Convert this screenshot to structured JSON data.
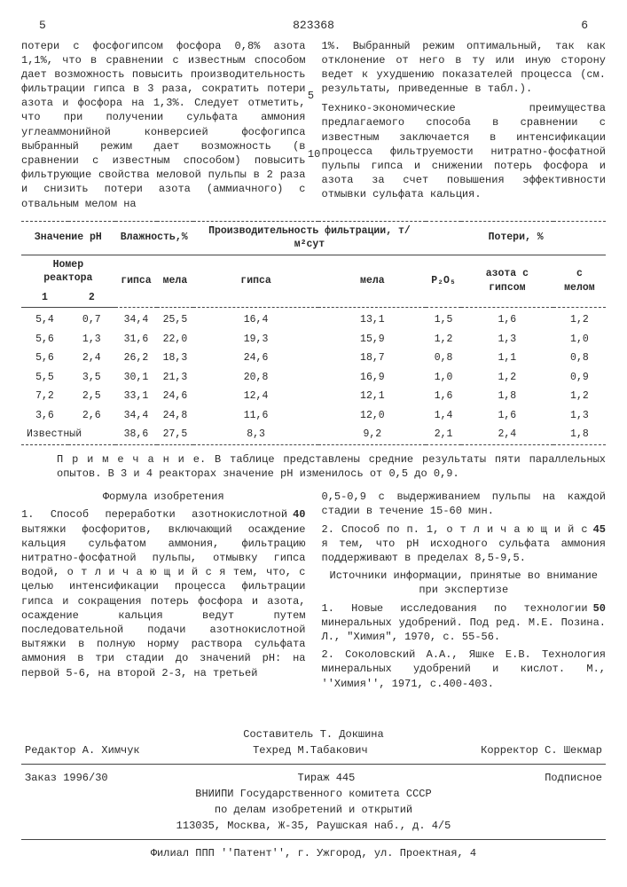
{
  "header": {
    "left_col_num": "5",
    "doc_number": "823368",
    "right_col_num": "6"
  },
  "body": {
    "left_para": "потери с фосфогипсом фосфора 0,8% азота 1,1%, что в сравнении с известным способом дает возможность повысить производительность фильтрации гипса в 3 раза, сократить потери азота и фосфора на 1,3%. Следует отметить, что при получении сульфата аммония углеаммонийной конверсией фосфогипса выбранный режим дает возможность (в сравнении с известным способом) повысить фильтрующие свойства меловой пульпы в 2 раза и снизить потери азота (аммиачного) с отвальным мелом на",
    "right_para1": "1%. Выбранный режим оптимальный, так как отклонение от него в ту или иную сторону ведет к ухудшению показателей процесса (см. результаты, приведенные в табл.).",
    "right_para2": "Технико-экономические преимущества предлагаемого способа в сравнении с известным заключается в интенсификации процесса фильтруемости нитратно-фосфатной пульпы гипса и снижении потерь фосфора и азота за счет повышения эффективности отмывки сульфата кальция.",
    "side5": "5",
    "side10": "10"
  },
  "table": {
    "head": {
      "ph": "Значение pH",
      "reactor": "Номер реактора",
      "r1": "1",
      "r2": "2",
      "moist": "Влажность,%",
      "m_g": "гипса",
      "m_m": "мела",
      "prod": "Производительность фильтрации, т/м²сут",
      "p_g": "гипса",
      "p_m": "мела",
      "loss": "Потери, %",
      "p2o5": "P₂O₅",
      "n_g": "азота с гипсом",
      "n_m": "с мелом"
    },
    "rows": [
      {
        "r1": "5,4",
        "r2": "0,7",
        "mg": "34,4",
        "mm": "25,5",
        "pg": "16,4",
        "pm": "13,1",
        "p": "1,5",
        "ng": "1,6",
        "nm": "1,2"
      },
      {
        "r1": "5,6",
        "r2": "1,3",
        "mg": "31,6",
        "mm": "22,0",
        "pg": "19,3",
        "pm": "15,9",
        "p": "1,2",
        "ng": "1,3",
        "nm": "1,0"
      },
      {
        "r1": "5,6",
        "r2": "2,4",
        "mg": "26,2",
        "mm": "18,3",
        "pg": "24,6",
        "pm": "18,7",
        "p": "0,8",
        "ng": "1,1",
        "nm": "0,8"
      },
      {
        "r1": "5,5",
        "r2": "3,5",
        "mg": "30,1",
        "mm": "21,3",
        "pg": "20,8",
        "pm": "16,9",
        "p": "1,0",
        "ng": "1,2",
        "nm": "0,9"
      },
      {
        "r1": "7,2",
        "r2": "2,5",
        "mg": "33,1",
        "mm": "24,6",
        "pg": "12,4",
        "pm": "12,1",
        "p": "1,6",
        "ng": "1,8",
        "nm": "1,2"
      },
      {
        "r1": "3,6",
        "r2": "2,6",
        "mg": "34,4",
        "mm": "24,8",
        "pg": "11,6",
        "pm": "12,0",
        "p": "1,4",
        "ng": "1,6",
        "nm": "1,3"
      },
      {
        "r1": "Известный",
        "r2": "",
        "mg": "38,6",
        "mm": "27,5",
        "pg": "8,3",
        "pm": "9,2",
        "p": "2,1",
        "ng": "2,4",
        "nm": "1,8"
      }
    ]
  },
  "note": "П р и м е ч а н и е. В таблице представлены средние результаты пяти параллельных опытов. В 3 и 4 реакторах значение pH изменилось от 0,5 до 0,9.",
  "formula_title": "Формула изобретения",
  "claims": {
    "c1": "1. Способ переработки азотнокислотной вытяжки фосфоритов, включающий осаждение кальция сульфатом аммония, фильтрацию нитратно-фосфатной пульпы, отмывку гипса водой, о т л и ч а ю щ и й с я  тем, что, с целью интенсификации процесса фильтрации гипса и сокращения потерь фосфора и азота, осаждение кальция ведут путем последовательной подачи азотнокислотной вытяжки в полную норму раствора сульфата аммония в три стадии до значений pH: на первой 5-6, на второй 2-3, на третьей",
    "c1b": "0,5-0,9 с выдерживанием пульпы на каждой стадии в течение 15-60 мин.",
    "c2": "2. Способ по п. 1, о т л и ч а ю щ и й с я  тем, что pH исходного сульфата аммония поддерживают в пределах 8,5-9,5.",
    "src_title": "Источники информации, принятые во внимание при экспертизе",
    "src1": "1. Новые исследования по технологии минеральных удобрений. Под ред. М.Е. Позина. Л., \"Химия\", 1970, с. 55-56.",
    "src2": "2. Соколовский А.А., Яшке Е.В. Технология минеральных удобрений и кислот. М., ''Химия'', 1971, с.400-403.",
    "m40": "40",
    "m45": "45",
    "m50": "50"
  },
  "footer": {
    "comp": "Составитель Т. Докшина",
    "editor": "Редактор А. Химчук",
    "tech": "Техред М.Табакович",
    "corr": "Корректор С. Шекмар",
    "order": "Заказ 1996/30",
    "tirazh": "Тираж 445",
    "sign": "Подписное",
    "org1": "ВНИИПИ Государственного комитета СССР",
    "org2": "по делам изобретений и открытий",
    "addr": "113035, Москва, Ж-35, Раушская наб., д. 4/5",
    "filial": "Филиал ППП ''Патент'', г. Ужгород, ул. Проектная, 4"
  }
}
